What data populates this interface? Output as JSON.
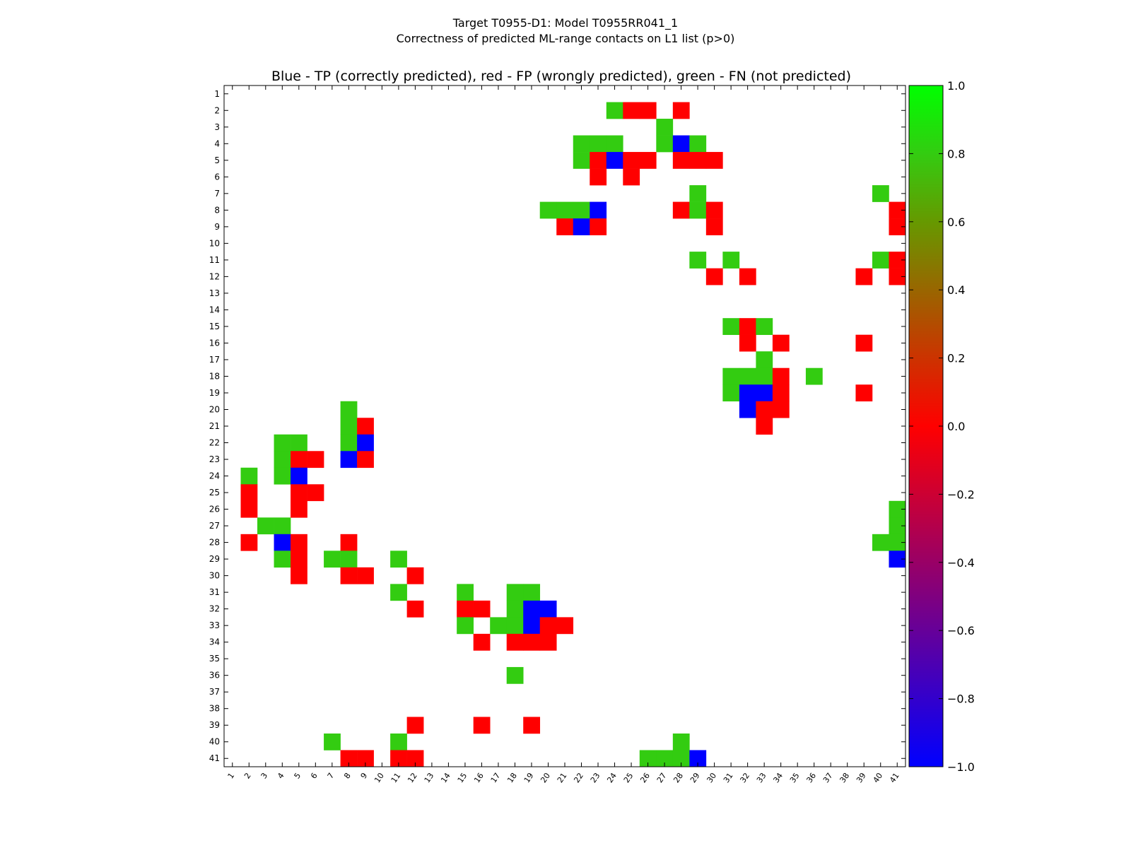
{
  "figure": {
    "title_line1": "Target T0955-D1: Model T0955RR041_1",
    "title_line2": "Correctness of predicted ML-range contacts on L1 list (p>0)"
  },
  "chart_data": {
    "type": "heatmap",
    "title": "Blue - TP (correctly predicted), red - FP (wrongly predicted), green - FN (not predicted)",
    "n": 41,
    "x_ticks": [
      1,
      2,
      3,
      4,
      5,
      6,
      7,
      8,
      9,
      10,
      11,
      12,
      13,
      14,
      15,
      16,
      17,
      18,
      19,
      20,
      21,
      22,
      23,
      24,
      25,
      26,
      27,
      28,
      29,
      30,
      31,
      32,
      33,
      34,
      35,
      36,
      37,
      38,
      39,
      40,
      41
    ],
    "y_ticks": [
      1,
      2,
      3,
      4,
      5,
      6,
      7,
      8,
      9,
      10,
      11,
      12,
      13,
      14,
      15,
      16,
      17,
      18,
      19,
      20,
      21,
      22,
      23,
      24,
      25,
      26,
      27,
      28,
      29,
      30,
      31,
      32,
      33,
      34,
      35,
      36,
      37,
      38,
      39,
      40,
      41
    ],
    "colors": {
      "tp": "#0000ff",
      "fp": "#ff0000",
      "fn": "#33cc11"
    },
    "value_map": {
      "tp": -1.0,
      "fp": 0.0,
      "fn": 0.8
    },
    "colorbar": {
      "range": [
        -1.0,
        1.0
      ],
      "ticks": [
        "1.0",
        "0.8",
        "0.6",
        "0.4",
        "0.2",
        "0.0",
        "−0.2",
        "−0.4",
        "−0.6",
        "−0.8",
        "−1.0"
      ],
      "stops": [
        "#00ff00",
        "#33cc11",
        "#669900",
        "#996600",
        "#cc3300",
        "#ff0000",
        "#cc0033",
        "#990066",
        "#660099",
        "#3300cc",
        "#0000ff"
      ]
    },
    "cells": [
      {
        "row": 2,
        "col": 24,
        "t": "fn"
      },
      {
        "row": 2,
        "col": 25,
        "t": "fp"
      },
      {
        "row": 2,
        "col": 26,
        "t": "fp"
      },
      {
        "row": 2,
        "col": 28,
        "t": "fp"
      },
      {
        "row": 3,
        "col": 27,
        "t": "fn"
      },
      {
        "row": 4,
        "col": 22,
        "t": "fn"
      },
      {
        "row": 4,
        "col": 23,
        "t": "fn"
      },
      {
        "row": 4,
        "col": 24,
        "t": "fn"
      },
      {
        "row": 4,
        "col": 27,
        "t": "fn"
      },
      {
        "row": 4,
        "col": 28,
        "t": "tp"
      },
      {
        "row": 4,
        "col": 29,
        "t": "fn"
      },
      {
        "row": 5,
        "col": 22,
        "t": "fn"
      },
      {
        "row": 5,
        "col": 23,
        "t": "fp"
      },
      {
        "row": 5,
        "col": 24,
        "t": "tp"
      },
      {
        "row": 5,
        "col": 25,
        "t": "fp"
      },
      {
        "row": 5,
        "col": 26,
        "t": "fp"
      },
      {
        "row": 5,
        "col": 28,
        "t": "fp"
      },
      {
        "row": 5,
        "col": 29,
        "t": "fp"
      },
      {
        "row": 5,
        "col": 30,
        "t": "fp"
      },
      {
        "row": 6,
        "col": 23,
        "t": "fp"
      },
      {
        "row": 6,
        "col": 25,
        "t": "fp"
      },
      {
        "row": 7,
        "col": 29,
        "t": "fn"
      },
      {
        "row": 7,
        "col": 40,
        "t": "fn"
      },
      {
        "row": 8,
        "col": 20,
        "t": "fn"
      },
      {
        "row": 8,
        "col": 21,
        "t": "fn"
      },
      {
        "row": 8,
        "col": 22,
        "t": "fn"
      },
      {
        "row": 8,
        "col": 23,
        "t": "tp"
      },
      {
        "row": 8,
        "col": 28,
        "t": "fp"
      },
      {
        "row": 8,
        "col": 29,
        "t": "fn"
      },
      {
        "row": 8,
        "col": 30,
        "t": "fp"
      },
      {
        "row": 8,
        "col": 41,
        "t": "fp"
      },
      {
        "row": 9,
        "col": 21,
        "t": "fp"
      },
      {
        "row": 9,
        "col": 22,
        "t": "tp"
      },
      {
        "row": 9,
        "col": 23,
        "t": "fp"
      },
      {
        "row": 9,
        "col": 30,
        "t": "fp"
      },
      {
        "row": 9,
        "col": 41,
        "t": "fp"
      },
      {
        "row": 11,
        "col": 29,
        "t": "fn"
      },
      {
        "row": 11,
        "col": 31,
        "t": "fn"
      },
      {
        "row": 11,
        "col": 40,
        "t": "fn"
      },
      {
        "row": 11,
        "col": 41,
        "t": "fp"
      },
      {
        "row": 12,
        "col": 30,
        "t": "fp"
      },
      {
        "row": 12,
        "col": 32,
        "t": "fp"
      },
      {
        "row": 12,
        "col": 39,
        "t": "fp"
      },
      {
        "row": 12,
        "col": 41,
        "t": "fp"
      },
      {
        "row": 15,
        "col": 31,
        "t": "fn"
      },
      {
        "row": 15,
        "col": 32,
        "t": "fp"
      },
      {
        "row": 15,
        "col": 33,
        "t": "fn"
      },
      {
        "row": 16,
        "col": 32,
        "t": "fp"
      },
      {
        "row": 16,
        "col": 34,
        "t": "fp"
      },
      {
        "row": 16,
        "col": 39,
        "t": "fp"
      },
      {
        "row": 17,
        "col": 33,
        "t": "fn"
      },
      {
        "row": 18,
        "col": 31,
        "t": "fn"
      },
      {
        "row": 18,
        "col": 32,
        "t": "fn"
      },
      {
        "row": 18,
        "col": 33,
        "t": "fn"
      },
      {
        "row": 18,
        "col": 34,
        "t": "fp"
      },
      {
        "row": 18,
        "col": 36,
        "t": "fn"
      },
      {
        "row": 19,
        "col": 31,
        "t": "fn"
      },
      {
        "row": 19,
        "col": 32,
        "t": "tp"
      },
      {
        "row": 19,
        "col": 33,
        "t": "tp"
      },
      {
        "row": 19,
        "col": 34,
        "t": "fp"
      },
      {
        "row": 19,
        "col": 39,
        "t": "fp"
      },
      {
        "row": 20,
        "col": 8,
        "t": "fn"
      },
      {
        "row": 20,
        "col": 32,
        "t": "tp"
      },
      {
        "row": 20,
        "col": 33,
        "t": "fp"
      },
      {
        "row": 20,
        "col": 34,
        "t": "fp"
      },
      {
        "row": 21,
        "col": 8,
        "t": "fn"
      },
      {
        "row": 21,
        "col": 9,
        "t": "fp"
      },
      {
        "row": 21,
        "col": 33,
        "t": "fp"
      },
      {
        "row": 22,
        "col": 4,
        "t": "fn"
      },
      {
        "row": 22,
        "col": 5,
        "t": "fn"
      },
      {
        "row": 22,
        "col": 8,
        "t": "fn"
      },
      {
        "row": 22,
        "col": 9,
        "t": "tp"
      },
      {
        "row": 23,
        "col": 4,
        "t": "fn"
      },
      {
        "row": 23,
        "col": 5,
        "t": "fp"
      },
      {
        "row": 23,
        "col": 6,
        "t": "fp"
      },
      {
        "row": 23,
        "col": 8,
        "t": "tp"
      },
      {
        "row": 23,
        "col": 9,
        "t": "fp"
      },
      {
        "row": 24,
        "col": 2,
        "t": "fn"
      },
      {
        "row": 24,
        "col": 4,
        "t": "fn"
      },
      {
        "row": 24,
        "col": 5,
        "t": "tp"
      },
      {
        "row": 25,
        "col": 2,
        "t": "fp"
      },
      {
        "row": 25,
        "col": 5,
        "t": "fp"
      },
      {
        "row": 25,
        "col": 6,
        "t": "fp"
      },
      {
        "row": 26,
        "col": 2,
        "t": "fp"
      },
      {
        "row": 26,
        "col": 5,
        "t": "fp"
      },
      {
        "row": 26,
        "col": 41,
        "t": "fn"
      },
      {
        "row": 27,
        "col": 3,
        "t": "fn"
      },
      {
        "row": 27,
        "col": 4,
        "t": "fn"
      },
      {
        "row": 27,
        "col": 41,
        "t": "fn"
      },
      {
        "row": 28,
        "col": 2,
        "t": "fp"
      },
      {
        "row": 28,
        "col": 4,
        "t": "tp"
      },
      {
        "row": 28,
        "col": 5,
        "t": "fp"
      },
      {
        "row": 28,
        "col": 8,
        "t": "fp"
      },
      {
        "row": 28,
        "col": 40,
        "t": "fn"
      },
      {
        "row": 28,
        "col": 41,
        "t": "fn"
      },
      {
        "row": 29,
        "col": 4,
        "t": "fn"
      },
      {
        "row": 29,
        "col": 5,
        "t": "fp"
      },
      {
        "row": 29,
        "col": 7,
        "t": "fn"
      },
      {
        "row": 29,
        "col": 8,
        "t": "fn"
      },
      {
        "row": 29,
        "col": 11,
        "t": "fn"
      },
      {
        "row": 29,
        "col": 41,
        "t": "tp"
      },
      {
        "row": 30,
        "col": 5,
        "t": "fp"
      },
      {
        "row": 30,
        "col": 8,
        "t": "fp"
      },
      {
        "row": 30,
        "col": 9,
        "t": "fp"
      },
      {
        "row": 30,
        "col": 12,
        "t": "fp"
      },
      {
        "row": 31,
        "col": 11,
        "t": "fn"
      },
      {
        "row": 31,
        "col": 15,
        "t": "fn"
      },
      {
        "row": 31,
        "col": 18,
        "t": "fn"
      },
      {
        "row": 31,
        "col": 19,
        "t": "fn"
      },
      {
        "row": 32,
        "col": 12,
        "t": "fp"
      },
      {
        "row": 32,
        "col": 15,
        "t": "fp"
      },
      {
        "row": 32,
        "col": 16,
        "t": "fp"
      },
      {
        "row": 32,
        "col": 18,
        "t": "fn"
      },
      {
        "row": 32,
        "col": 19,
        "t": "tp"
      },
      {
        "row": 32,
        "col": 20,
        "t": "tp"
      },
      {
        "row": 33,
        "col": 15,
        "t": "fn"
      },
      {
        "row": 33,
        "col": 17,
        "t": "fn"
      },
      {
        "row": 33,
        "col": 18,
        "t": "fn"
      },
      {
        "row": 33,
        "col": 19,
        "t": "tp"
      },
      {
        "row": 33,
        "col": 20,
        "t": "fp"
      },
      {
        "row": 33,
        "col": 21,
        "t": "fp"
      },
      {
        "row": 34,
        "col": 16,
        "t": "fp"
      },
      {
        "row": 34,
        "col": 18,
        "t": "fp"
      },
      {
        "row": 34,
        "col": 19,
        "t": "fp"
      },
      {
        "row": 34,
        "col": 20,
        "t": "fp"
      },
      {
        "row": 36,
        "col": 18,
        "t": "fn"
      },
      {
        "row": 39,
        "col": 12,
        "t": "fp"
      },
      {
        "row": 39,
        "col": 16,
        "t": "fp"
      },
      {
        "row": 39,
        "col": 19,
        "t": "fp"
      },
      {
        "row": 40,
        "col": 7,
        "t": "fn"
      },
      {
        "row": 40,
        "col": 11,
        "t": "fn"
      },
      {
        "row": 40,
        "col": 28,
        "t": "fn"
      },
      {
        "row": 41,
        "col": 8,
        "t": "fp"
      },
      {
        "row": 41,
        "col": 9,
        "t": "fp"
      },
      {
        "row": 41,
        "col": 11,
        "t": "fp"
      },
      {
        "row": 41,
        "col": 12,
        "t": "fp"
      },
      {
        "row": 41,
        "col": 26,
        "t": "fn"
      },
      {
        "row": 41,
        "col": 27,
        "t": "fn"
      },
      {
        "row": 41,
        "col": 28,
        "t": "fn"
      },
      {
        "row": 41,
        "col": 29,
        "t": "tp"
      }
    ]
  }
}
